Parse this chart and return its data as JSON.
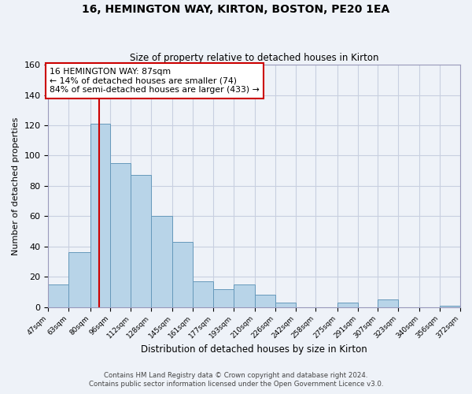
{
  "title": "16, HEMINGTON WAY, KIRTON, BOSTON, PE20 1EA",
  "subtitle": "Size of property relative to detached houses in Kirton",
  "xlabel": "Distribution of detached houses by size in Kirton",
  "ylabel": "Number of detached properties",
  "bar_color": "#b8d4e8",
  "bar_edge_color": "#6699bb",
  "vline_color": "#cc0000",
  "vline_x": 87,
  "annotation_line1": "16 HEMINGTON WAY: 87sqm",
  "annotation_line2": "← 14% of detached houses are smaller (74)",
  "annotation_line3": "84% of semi-detached houses are larger (433) →",
  "bins": [
    47,
    63,
    80,
    96,
    112,
    128,
    145,
    161,
    177,
    193,
    210,
    226,
    242,
    258,
    275,
    291,
    307,
    323,
    340,
    356,
    372
  ],
  "counts": [
    15,
    36,
    121,
    95,
    87,
    60,
    43,
    17,
    12,
    15,
    8,
    3,
    0,
    0,
    3,
    0,
    5,
    0,
    0,
    1
  ],
  "ylim": [
    0,
    160
  ],
  "yticks": [
    0,
    20,
    40,
    60,
    80,
    100,
    120,
    140,
    160
  ],
  "footer1": "Contains HM Land Registry data © Crown copyright and database right 2024.",
  "footer2": "Contains public sector information licensed under the Open Government Licence v3.0.",
  "background_color": "#eef2f8",
  "plot_bg_color": "#eef2f8",
  "grid_color": "#c8cfe0"
}
